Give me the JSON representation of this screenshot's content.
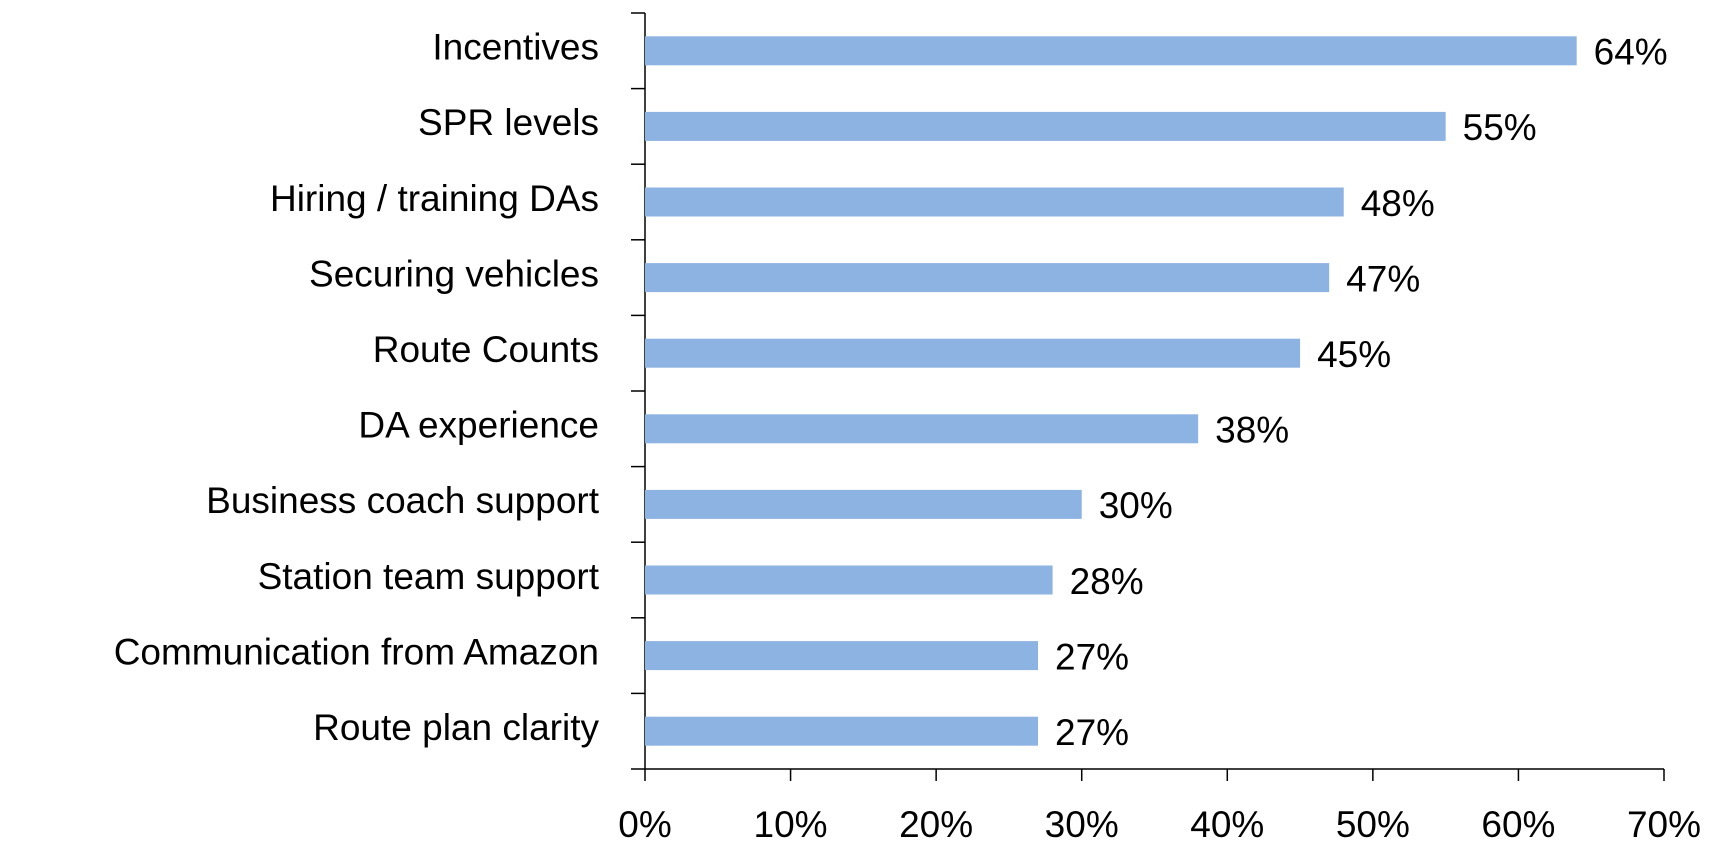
{
  "chart_data": {
    "type": "barh",
    "categories": [
      "Incentives",
      "SPR levels",
      "Hiring / training DAs",
      "Securing vehicles",
      "Route Counts",
      "DA experience",
      "Business coach support",
      "Station team support",
      "Communication from Amazon",
      "Route plan clarity"
    ],
    "values": [
      64,
      55,
      48,
      47,
      45,
      38,
      30,
      28,
      27,
      27
    ],
    "value_labels": [
      "64%",
      "55%",
      "48%",
      "47%",
      "45%",
      "38%",
      "30%",
      "28%",
      "27%",
      "27%"
    ],
    "color": "#8db3e2",
    "xlim": [
      0,
      70
    ],
    "xticks": [
      {
        "value": 0,
        "label": "0%"
      },
      {
        "value": 10,
        "label": "10%"
      },
      {
        "value": 20,
        "label": "20%"
      },
      {
        "value": 30,
        "label": "30%"
      },
      {
        "value": 40,
        "label": "40%"
      },
      {
        "value": 50,
        "label": "50%"
      },
      {
        "value": 60,
        "label": "60%"
      },
      {
        "value": 70,
        "label": "70%"
      }
    ],
    "grid": false
  }
}
